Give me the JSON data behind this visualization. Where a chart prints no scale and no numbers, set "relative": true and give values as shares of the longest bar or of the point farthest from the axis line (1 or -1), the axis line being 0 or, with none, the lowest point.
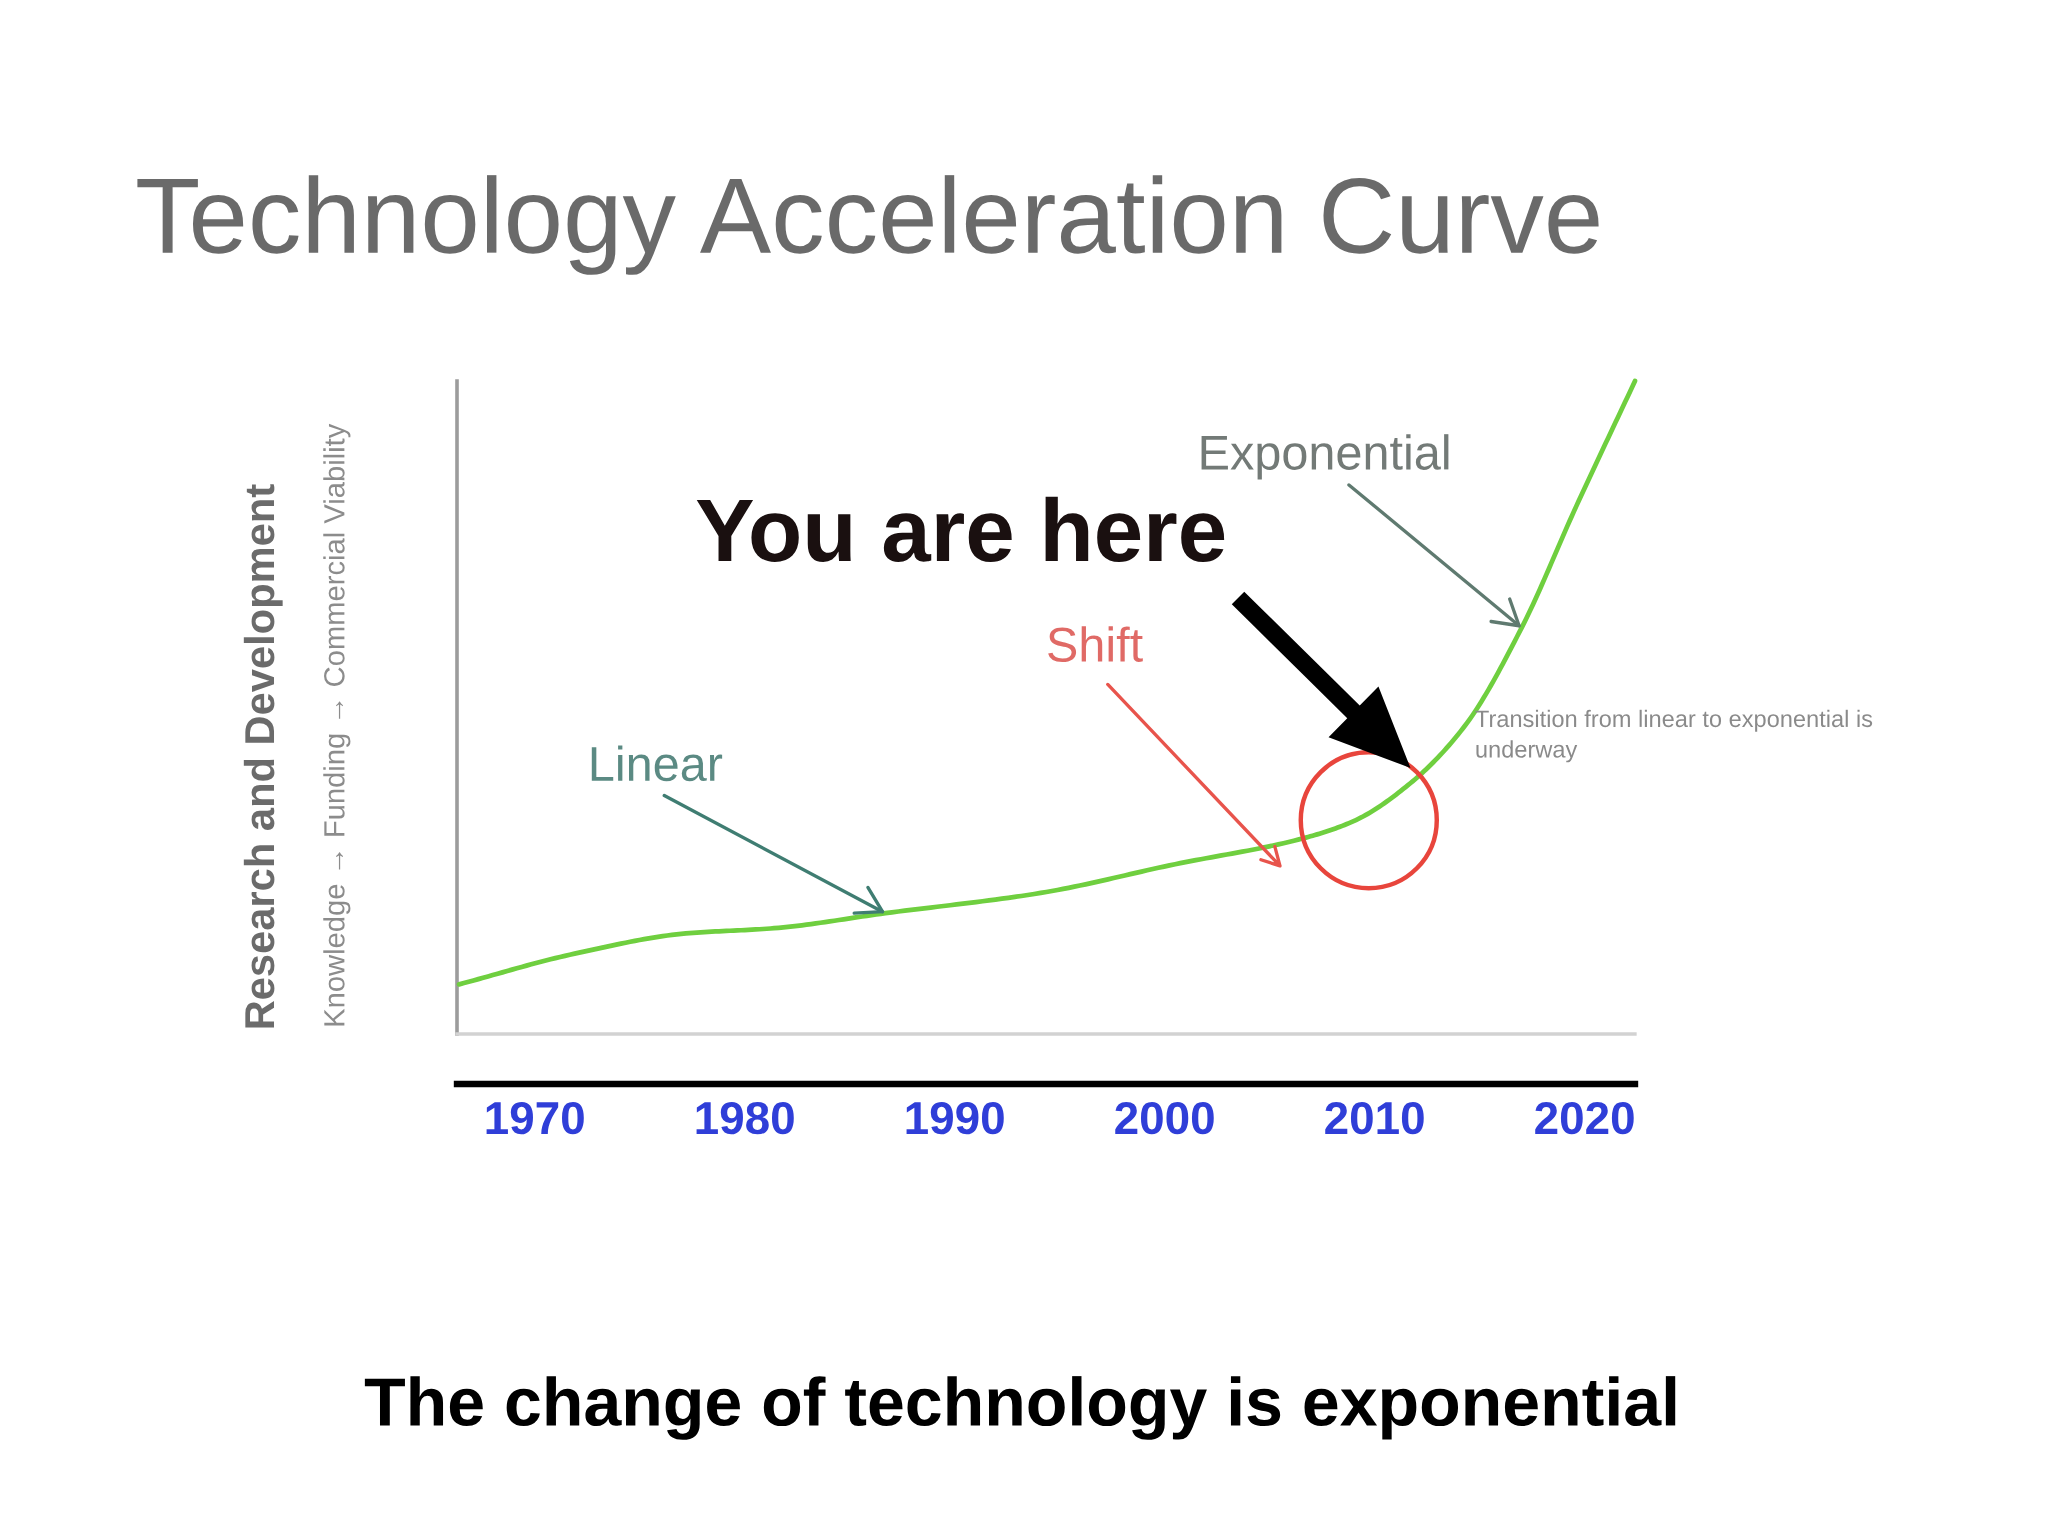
{
  "chart_data": {
    "type": "line",
    "title": "Technology Acceleration Curve",
    "ylabel": "Research and Development",
    "relative": true,
    "x": [
      1966.4,
      1971.9,
      1977.2,
      1981.4,
      1986.7,
      1994.1,
      2000.5,
      2006.4,
      2009.0,
      2011.7,
      2014.3,
      2017.0,
      2019.6,
      2022.4
    ],
    "series": [
      {
        "color": "#6fcf3f",
        "values": [
          0.076,
          0.123,
          0.154,
          0.162,
          0.185,
          0.216,
          0.26,
          0.298,
          0.326,
          0.384,
          0.472,
          0.622,
          0.808,
          1
        ]
      }
    ],
    "xlim": [
      1966.3,
      2022.4
    ],
    "xticks": [
      1970,
      1980,
      1990,
      2000,
      2010,
      2020
    ],
    "annotations": [
      {
        "text": "Linear",
        "x": 1986.7,
        "y": 0.185
      },
      "Shift",
      {
        "text": "Exponential",
        "x": 2017.0,
        "y": 0.622
      },
      "You are here",
      {
        "text": "Transition from linear to exponential is\nunderway",
        "x": 2014.3,
        "y": 0.472
      },
      "Knowledge → Funding → Commercial Viability",
      "The change of technology is exponential"
    ],
    "marker": "none",
    "line_style": "solid"
  }
}
